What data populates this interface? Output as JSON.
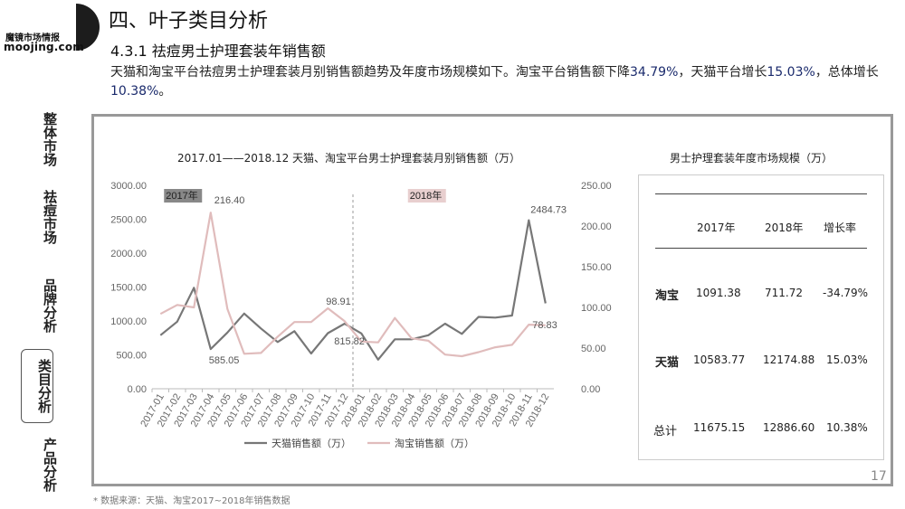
{
  "brand": {
    "line1": "魔镜市场情报",
    "line2": "moojing.com"
  },
  "nav": [
    {
      "label": "整体市场"
    },
    {
      "label": "祛痘市场"
    },
    {
      "label": "品牌分析"
    },
    {
      "label": "类目分析",
      "active": true
    },
    {
      "label": "产品分析"
    }
  ],
  "header": {
    "title": "四、叶子类目分析",
    "subtitle": "4.3.1  祛痘男士护理套装年销售额",
    "desc_part1": "天猫和淘宝平台祛痘男士护理套装月别销售额趋势及年度市场规模如下。淘宝平台销售额下降",
    "desc_num1": "34.79%",
    "desc_part2": "，天猫平台增长",
    "desc_num2": "15.03%",
    "desc_part3": "，总体增长",
    "desc_num3": "10.38%",
    "desc_part4": "。"
  },
  "chart_data": {
    "type": "line",
    "title": "2017.01——2018.12  天猫、淘宝平台男士护理套装月别销售额（万）",
    "categories": [
      "2017-01",
      "2017-02",
      "2017-03",
      "2017-04",
      "2017-05",
      "2017-06",
      "2017-07",
      "2017-08",
      "2017-09",
      "2017-10",
      "2017-11",
      "2017-12",
      "2018-01",
      "2018-02",
      "2018-03",
      "2018-04",
      "2018-05",
      "2018-06",
      "2018-07",
      "2018-08",
      "2018-09",
      "2018-10",
      "2018-11",
      "2018-12"
    ],
    "y_left": {
      "min": 0,
      "max": 3000,
      "ticks": [
        "0.00",
        "500.00",
        "1000.00",
        "1500.00",
        "2000.00",
        "2500.00",
        "3000.00"
      ]
    },
    "y_right": {
      "min": 0,
      "max": 250,
      "ticks": [
        "0.00",
        "50.00",
        "100.00",
        "150.00",
        "200.00",
        "250.00"
      ]
    },
    "series": [
      {
        "name": "天猫销售额（万）",
        "axis": "left",
        "color": "#777777",
        "values": [
          790,
          990,
          1490,
          585.05,
          830,
          1110,
          890,
          690,
          850,
          520,
          820,
          960,
          815.82,
          430,
          730,
          730,
          790,
          960,
          810,
          1060,
          1050,
          1080,
          2484.73,
          1260
        ]
      },
      {
        "name": "淘宝销售额（万）",
        "axis": "right",
        "color": "#e0bcbc",
        "values": [
          92,
          103,
          100,
          216.4,
          98,
          43,
          44,
          64,
          82,
          82,
          98.91,
          83,
          58,
          57,
          87,
          62,
          59,
          42,
          40,
          45,
          51,
          54,
          78.83,
          78
        ]
      }
    ],
    "annotations": [
      {
        "text": "216.40",
        "series": 1,
        "index": 3
      },
      {
        "text": "585.05",
        "series": 0,
        "index": 3
      },
      {
        "text": "98.91",
        "series": 1,
        "index": 10
      },
      {
        "text": "815.82",
        "series": 0,
        "index": 12
      },
      {
        "text": "2484.73",
        "series": 0,
        "index": 22
      },
      {
        "text": "78.83",
        "series": 1,
        "index": 22
      }
    ],
    "period_labels": [
      "2017年",
      "2018年"
    ],
    "legend": [
      "天猫销售额（万）",
      "淘宝销售额（万）"
    ]
  },
  "table": {
    "title": "男士护理套装年度市场规模（万）",
    "headers": [
      "",
      "2017年",
      "2018年",
      "增长率"
    ],
    "rows": [
      {
        "label": "淘宝",
        "y2017": "1091.38",
        "y2018": "711.72",
        "growth": "-34.79%"
      },
      {
        "label": "天猫",
        "y2017": "10583.77",
        "y2018": "12174.88",
        "growth": "15.03%"
      },
      {
        "label": "总计",
        "y2017": "11675.15",
        "y2018": "12886.60",
        "growth": "10.38%"
      }
    ]
  },
  "page_number": "17",
  "source": "* 数据来源：天猫、淘宝2017~2018年销售数据"
}
